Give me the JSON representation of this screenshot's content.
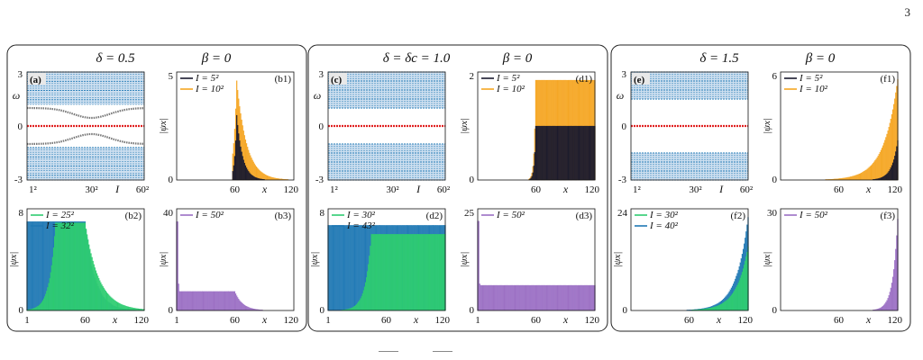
{
  "page_number": "3",
  "colors": {
    "band": "#1f78b4",
    "band_light": "#cfe0f0",
    "edge": "#e02020",
    "gap_state": "#777777",
    "black": "#1a1a2e",
    "orange": "#f5a623",
    "green": "#2ecc71",
    "blue": "#1f78b4",
    "purple": "#9b6fc4"
  },
  "groups": [
    {
      "id": "delta-0-5",
      "title_delta": "δ = 0.5",
      "title_beta": "β = 0",
      "panels": [
        {
          "id": "a",
          "kind": "spectrum",
          "label": "(a)",
          "ylabel": "ω",
          "yticks": [
            "3",
            "0",
            "-3"
          ],
          "xticks": [
            "1²",
            "30²",
            "60²"
          ],
          "xlabel": "I",
          "bands": [
            [
              1.2,
              3.0
            ],
            [
              -3.0,
              -1.2
            ]
          ],
          "gap_states": true
        },
        {
          "id": "b1",
          "kind": "bars",
          "label": "(b1)",
          "ylabel": "|ψx|",
          "ymax": 5,
          "yticks": [
            "5",
            "0"
          ],
          "xticks": [
            "60",
            "120"
          ],
          "xlabel": "x",
          "legend": [
            {
              "name": "I = 5²",
              "color": "black"
            },
            {
              "name": "I = 10²",
              "color": "orange"
            }
          ],
          "series": [
            {
              "color": "orange",
              "shape": "peak",
              "center": 62,
              "height": 4.6,
              "left_decay": 3.0,
              "right_decay": 10.0
            },
            {
              "color": "black",
              "shape": "peak",
              "center": 62,
              "height": 3.0,
              "left_decay": 2.0,
              "right_decay": 6.0
            }
          ]
        },
        {
          "id": "b2",
          "kind": "bars",
          "label": "(b2)",
          "ylabel": "|ψx|",
          "ymax": 8,
          "yticks": [
            "8",
            "0"
          ],
          "xticks": [
            "1",
            "60",
            "120"
          ],
          "xlabel": "x",
          "legend": [
            {
              "name": "I = 25²",
              "color": "green"
            },
            {
              "name": "I = 32²",
              "color": "blue"
            }
          ],
          "series": [
            {
              "color": "blue",
              "shape": "plateau_left",
              "start": 1,
              "end": 60,
              "height": 7.0,
              "decay": 10.0
            },
            {
              "color": "green",
              "shape": "mesa",
              "start": 30,
              "end": 60,
              "height": 6.9,
              "left_decay": 6.0,
              "right_decay": 14.0
            }
          ]
        },
        {
          "id": "b3",
          "kind": "bars",
          "label": "(b3)",
          "ylabel": "|ψx|",
          "ymax": 40,
          "yticks": [
            "40",
            "0"
          ],
          "xticks": [
            "1",
            "60",
            "120"
          ],
          "xlabel": "x",
          "legend": [
            {
              "name": "I = 50²",
              "color": "purple"
            }
          ],
          "series": [
            {
              "color": "purple",
              "shape": "edge_plateau",
              "start": 1,
              "end": 60,
              "height": 7.5,
              "spike": 35,
              "decay": 8.0
            }
          ]
        }
      ]
    },
    {
      "id": "delta-1-0",
      "title_delta": "δ = δc = 1.0",
      "title_beta": "β = 0",
      "panels": [
        {
          "id": "c",
          "kind": "spectrum",
          "label": "(c)",
          "ylabel": "ω",
          "yticks": [
            "3",
            "0",
            "-3"
          ],
          "xticks": [
            "1²",
            "30²",
            "60²"
          ],
          "xlabel": "I",
          "bands": [
            [
              1.0,
              3.0
            ],
            [
              -3.0,
              -1.0
            ]
          ],
          "gap_states": false
        },
        {
          "id": "d1",
          "kind": "bars",
          "label": "(d1)",
          "ylabel": "|ψx|",
          "ymax": 2,
          "yticks": [
            "2",
            "0"
          ],
          "xticks": [
            "60",
            "120"
          ],
          "xlabel": "x",
          "legend": [
            {
              "name": "I = 5²",
              "color": "black"
            },
            {
              "name": "I = 10²",
              "color": "orange"
            }
          ],
          "series": [
            {
              "color": "orange",
              "shape": "step",
              "start": 60,
              "end": 120,
              "height": 1.85,
              "left_decay": 1.5
            },
            {
              "color": "black",
              "shape": "step",
              "start": 60,
              "end": 120,
              "height": 1.0,
              "left_decay": 1.5
            }
          ]
        },
        {
          "id": "d2",
          "kind": "bars",
          "label": "(d2)",
          "ylabel": "|ψx|",
          "ymax": 8,
          "yticks": [
            "8",
            "0"
          ],
          "xticks": [
            "1",
            "60",
            "120"
          ],
          "xlabel": "x",
          "legend": [
            {
              "name": "I = 30²",
              "color": "green"
            },
            {
              "name": "I = 43²",
              "color": "blue"
            }
          ],
          "series": [
            {
              "color": "blue",
              "shape": "step",
              "start": 1,
              "end": 120,
              "height": 6.7,
              "left_decay": 0.1
            },
            {
              "color": "green",
              "shape": "step",
              "start": 45,
              "end": 120,
              "height": 6.0,
              "left_decay": 6.0
            }
          ]
        },
        {
          "id": "d3",
          "kind": "bars",
          "label": "(d3)",
          "ylabel": "|ψx|",
          "ymax": 25,
          "yticks": [
            "25",
            "0"
          ],
          "xticks": [
            "1",
            "60",
            "120"
          ],
          "xlabel": "x",
          "legend": [
            {
              "name": "I = 50²",
              "color": "purple"
            }
          ],
          "series": [
            {
              "color": "purple",
              "shape": "edge_plateau",
              "start": 1,
              "end": 120,
              "height": 6.2,
              "spike": 22,
              "decay": 0.1
            }
          ]
        }
      ]
    },
    {
      "id": "delta-1-5",
      "title_delta": "δ = 1.5",
      "title_beta": "β = 0",
      "panels": [
        {
          "id": "e",
          "kind": "spectrum",
          "label": "(e)",
          "ylabel": "ω",
          "yticks": [
            "3",
            "0",
            "-3"
          ],
          "xticks": [
            "1²",
            "30²",
            "60²"
          ],
          "xlabel": "I",
          "bands": [
            [
              1.5,
              3.0
            ],
            [
              -3.0,
              -1.5
            ]
          ],
          "gap_states": false
        },
        {
          "id": "f1",
          "kind": "bars",
          "label": "(f1)",
          "ylabel": "|ψx|",
          "ymax": 6,
          "yticks": [
            "6",
            "0"
          ],
          "xticks": [
            "60",
            "120"
          ],
          "xlabel": "x",
          "legend": [
            {
              "name": "I = 5²",
              "color": "black"
            },
            {
              "name": "I = 10²",
              "color": "orange"
            }
          ],
          "series": [
            {
              "color": "orange",
              "shape": "right_edge",
              "height": 5.6,
              "decay": 14.0
            },
            {
              "color": "black",
              "shape": "right_edge",
              "height": 2.2,
              "decay": 6.0
            }
          ]
        },
        {
          "id": "f2",
          "kind": "bars",
          "label": "(f2)",
          "ylabel": "|ψx|",
          "ymax": 24,
          "yticks": [
            "24",
            "0"
          ],
          "xticks": [
            "60",
            "120"
          ],
          "xlabel": "x",
          "legend": [
            {
              "name": "I = 30²",
              "color": "green"
            },
            {
              "name": "I = 40²",
              "color": "blue"
            }
          ],
          "series": [
            {
              "color": "blue",
              "shape": "right_edge",
              "height": 22.0,
              "decay": 12.0
            },
            {
              "color": "green",
              "shape": "right_edge",
              "height": 15.0,
              "decay": 12.0
            }
          ]
        },
        {
          "id": "f3",
          "kind": "bars",
          "label": "(f3)",
          "ylabel": "|ψx|",
          "ymax": 30,
          "yticks": [
            "30",
            "0"
          ],
          "xticks": [
            "60",
            "120"
          ],
          "xlabel": "x",
          "legend": [
            {
              "name": "I = 50²",
              "color": "purple"
            }
          ],
          "series": [
            {
              "color": "purple",
              "shape": "right_edge",
              "height": 27.0,
              "decay": 5.0
            }
          ]
        }
      ]
    }
  ]
}
